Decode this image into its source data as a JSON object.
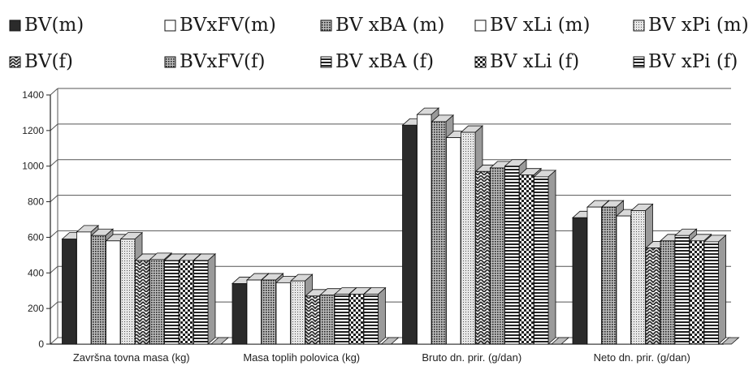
{
  "chart_data": {
    "type": "bar",
    "categories": [
      "Završna tovna masa (kg)",
      "Masa toplih polovica (kg)",
      "Bruto dn. prir. (g/dan)",
      "Neto dn. prir. (g/dan)"
    ],
    "series": [
      {
        "name": "BV(m)",
        "pattern": "solid-dark",
        "values": [
          590,
          340,
          1230,
          710
        ]
      },
      {
        "name": "BVxFV(m)",
        "pattern": "white",
        "values": [
          630,
          360,
          1290,
          770
        ]
      },
      {
        "name": "BV xBA (m)",
        "pattern": "dark-dots",
        "values": [
          610,
          360,
          1250,
          770
        ]
      },
      {
        "name": "BV xLi (m)",
        "pattern": "white",
        "values": [
          580,
          345,
          1160,
          720
        ]
      },
      {
        "name": "BV xPi (m)",
        "pattern": "light-dots",
        "values": [
          590,
          355,
          1190,
          750
        ]
      },
      {
        "name": "BV(f)",
        "pattern": "zigzag",
        "values": [
          470,
          270,
          970,
          540
        ]
      },
      {
        "name": "BVxFV(f)",
        "pattern": "dark-dots",
        "values": [
          475,
          275,
          990,
          580
        ]
      },
      {
        "name": "BV xBA (f)",
        "pattern": "hstripes",
        "values": [
          470,
          280,
          1000,
          610
        ]
      },
      {
        "name": "BV xLi (f)",
        "pattern": "checker",
        "values": [
          470,
          280,
          950,
          580
        ]
      },
      {
        "name": "BV xPi (f)",
        "pattern": "hstripes",
        "values": [
          470,
          280,
          940,
          575
        ]
      }
    ],
    "y_ticks": [
      "0",
      "200",
      "400",
      "600",
      "800",
      "1000",
      "1200",
      "1400"
    ],
    "ylim": [
      0,
      1400
    ],
    "grid": "horizontal",
    "legend_position": "top",
    "bar_3d": true,
    "colors": {
      "dark": "#2b2b2b",
      "light": "#ffffff",
      "side": "#9a9a9a",
      "top": "#d9d9d9",
      "grid": "#555555"
    }
  }
}
